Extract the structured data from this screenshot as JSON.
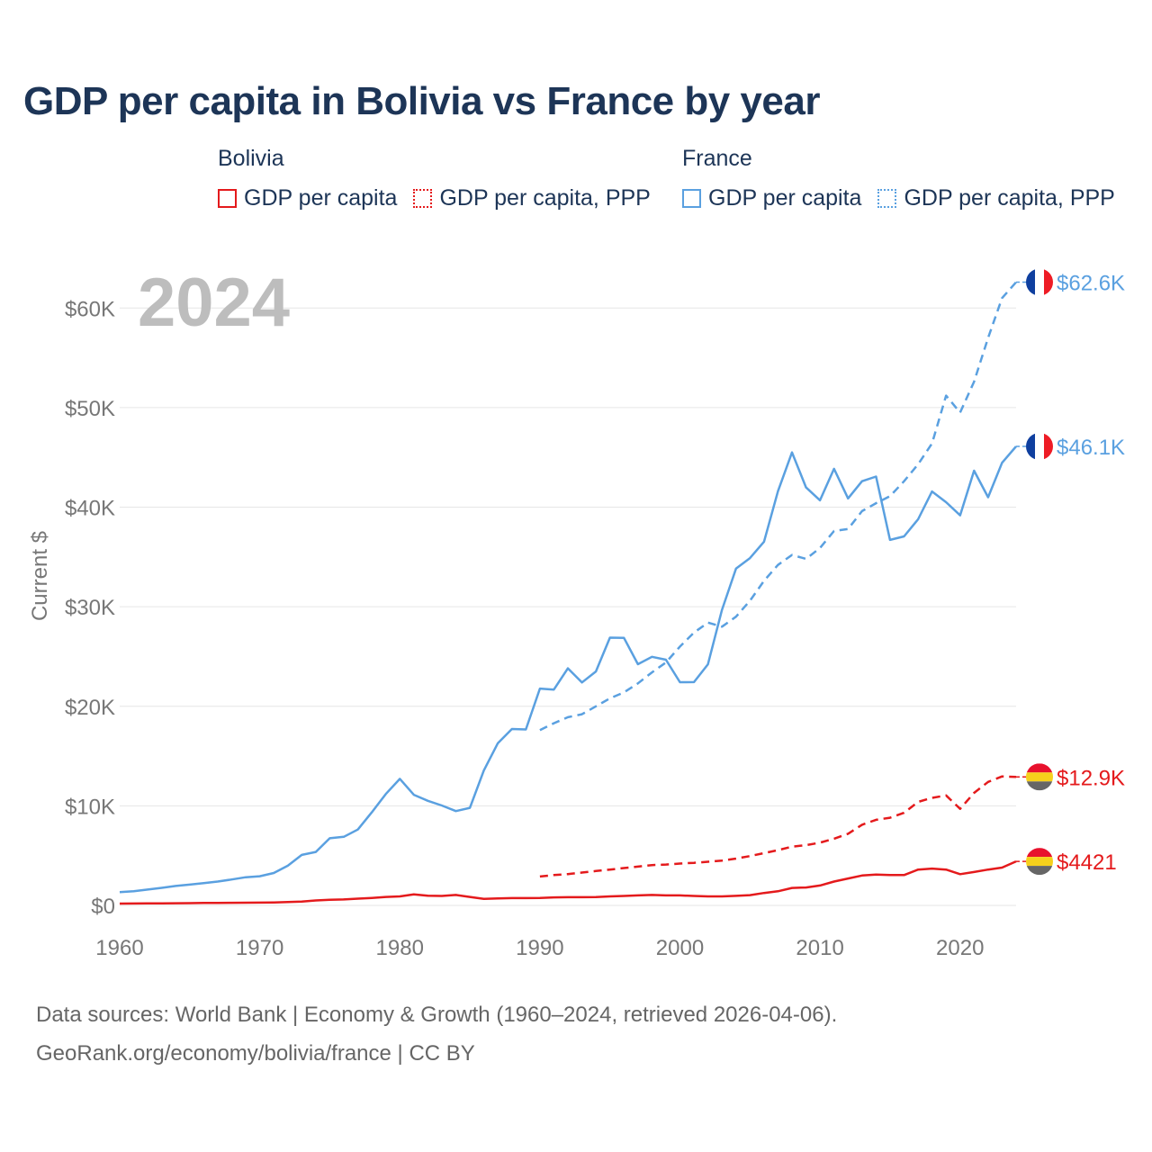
{
  "title": "GDP per capita in Bolivia vs France by year",
  "legend": {
    "groups": [
      {
        "name": "Bolivia",
        "items": [
          {
            "label": "GDP per capita",
            "style": "solid",
            "color": "#e41a1c"
          },
          {
            "label": "GDP per capita, PPP",
            "style": "dotted",
            "color": "#e41a1c"
          }
        ]
      },
      {
        "name": "France",
        "items": [
          {
            "label": "GDP per capita",
            "style": "solid",
            "color": "#5aa0e0"
          },
          {
            "label": "GDP per capita, PPP",
            "style": "dotted",
            "color": "#5aa0e0"
          }
        ]
      }
    ]
  },
  "year_label": "2024",
  "chart_data": {
    "type": "line",
    "title": "GDP per capita in Bolivia vs France by year",
    "xlabel": "",
    "ylabel": "Current $",
    "xlim": [
      1960,
      2024
    ],
    "ylim": [
      0,
      64000
    ],
    "x_ticks": [
      1960,
      1970,
      1980,
      1990,
      2000,
      2010,
      2020
    ],
    "y_ticks": [
      0,
      10000,
      20000,
      30000,
      40000,
      50000,
      60000
    ],
    "y_tick_labels": [
      "$0",
      "$10K",
      "$20K",
      "$30K",
      "$40K",
      "$50K",
      "$60K"
    ],
    "grid": true,
    "series": [
      {
        "name": "France GDP per capita",
        "country": "France",
        "color": "#5aa0e0",
        "dash": "solid",
        "end_label": "$46.1K",
        "x": [
          1960,
          1961,
          1962,
          1963,
          1964,
          1965,
          1966,
          1967,
          1968,
          1969,
          1970,
          1971,
          1972,
          1973,
          1974,
          1975,
          1976,
          1977,
          1978,
          1979,
          1980,
          1981,
          1982,
          1983,
          1984,
          1985,
          1986,
          1987,
          1988,
          1989,
          1990,
          1991,
          1992,
          1993,
          1994,
          1995,
          1996,
          1997,
          1998,
          1999,
          2000,
          2001,
          2002,
          2003,
          2004,
          2005,
          2006,
          2007,
          2008,
          2009,
          2010,
          2011,
          2012,
          2013,
          2014,
          2015,
          2016,
          2017,
          2018,
          2019,
          2020,
          2021,
          2022,
          2023,
          2024
        ],
        "values": [
          1340,
          1420,
          1590,
          1760,
          1950,
          2090,
          2240,
          2400,
          2600,
          2830,
          2930,
          3250,
          3990,
          5070,
          5370,
          6740,
          6890,
          7620,
          9350,
          11190,
          12710,
          11110,
          10500,
          10030,
          9470,
          9800,
          13550,
          16300,
          17720,
          17670,
          21780,
          21680,
          23810,
          22390,
          23490,
          26890,
          26870,
          24230,
          24970,
          24680,
          22420,
          22430,
          24220,
          29690,
          33830,
          34880,
          36530,
          41600,
          45500,
          41980,
          40690,
          43850,
          40880,
          42600,
          43070,
          36710,
          37060,
          38780,
          41570,
          40500,
          39180,
          43660,
          40990,
          44460,
          46100
        ]
      },
      {
        "name": "France GDP per capita, PPP",
        "country": "France",
        "color": "#5aa0e0",
        "dash": "dashed",
        "end_label": "$62.6K",
        "x": [
          1990,
          1991,
          1992,
          1993,
          1994,
          1995,
          1996,
          1997,
          1998,
          1999,
          2000,
          2001,
          2002,
          2003,
          2004,
          2005,
          2006,
          2007,
          2008,
          2009,
          2010,
          2011,
          2012,
          2013,
          2014,
          2015,
          2016,
          2017,
          2018,
          2019,
          2020,
          2021,
          2022,
          2023,
          2024
        ],
        "values": [
          17600,
          18300,
          18900,
          19200,
          20000,
          20800,
          21400,
          22300,
          23400,
          24400,
          26000,
          27400,
          28400,
          28000,
          29000,
          30600,
          32600,
          34200,
          35200,
          34800,
          35900,
          37600,
          37800,
          39600,
          40400,
          41100,
          42600,
          44300,
          46400,
          51200,
          49500,
          52600,
          57000,
          61000,
          62600
        ]
      },
      {
        "name": "Bolivia GDP per capita, PPP",
        "country": "Bolivia",
        "color": "#e41a1c",
        "dash": "dashed",
        "end_label": "$12.9K",
        "x": [
          1990,
          1991,
          1992,
          1993,
          1994,
          1995,
          1996,
          1997,
          1998,
          1999,
          2000,
          2001,
          2002,
          2003,
          2004,
          2005,
          2006,
          2007,
          2008,
          2009,
          2010,
          2011,
          2012,
          2013,
          2014,
          2015,
          2016,
          2017,
          2018,
          2019,
          2020,
          2021,
          2022,
          2023,
          2024
        ],
        "values": [
          2900,
          3050,
          3150,
          3300,
          3450,
          3600,
          3750,
          3900,
          4050,
          4100,
          4200,
          4280,
          4380,
          4500,
          4700,
          4950,
          5250,
          5550,
          5900,
          6050,
          6300,
          6700,
          7200,
          8100,
          8600,
          8800,
          9300,
          10400,
          10800,
          11050,
          9700,
          11300,
          12400,
          12950,
          12900
        ]
      },
      {
        "name": "Bolivia GDP per capita",
        "country": "Bolivia",
        "color": "#e41a1c",
        "dash": "solid",
        "end_label": "$4421",
        "x": [
          1960,
          1961,
          1962,
          1963,
          1964,
          1965,
          1966,
          1967,
          1968,
          1969,
          1970,
          1971,
          1972,
          1973,
          1974,
          1975,
          1976,
          1977,
          1978,
          1979,
          1980,
          1981,
          1982,
          1983,
          1984,
          1985,
          1986,
          1987,
          1988,
          1989,
          1990,
          1991,
          1992,
          1993,
          1994,
          1995,
          1996,
          1997,
          1998,
          1999,
          2000,
          2001,
          2002,
          2003,
          2004,
          2005,
          2006,
          2007,
          2008,
          2009,
          2010,
          2011,
          2012,
          2013,
          2014,
          2015,
          2016,
          2017,
          2018,
          2019,
          2020,
          2021,
          2022,
          2023,
          2024
        ],
        "values": [
          180,
          190,
          200,
          210,
          220,
          230,
          240,
          250,
          260,
          270,
          280,
          300,
          330,
          380,
          500,
          560,
          600,
          680,
          750,
          850,
          900,
          1100,
          980,
          950,
          1050,
          850,
          650,
          700,
          730,
          730,
          750,
          800,
          820,
          820,
          830,
          900,
          950,
          1000,
          1050,
          1000,
          1000,
          950,
          900,
          900,
          960,
          1030,
          1250,
          1420,
          1750,
          1800,
          2000,
          2400,
          2700,
          3000,
          3100,
          3050,
          3050,
          3600,
          3700,
          3600,
          3140,
          3350,
          3600,
          3800,
          4421
        ]
      }
    ]
  },
  "sources": {
    "line1": "Data sources: World Bank | Economy & Growth (1960–2024, retrieved 2026-04-06).",
    "line2": "GeoRank.org/economy/bolivia/france | CC BY"
  }
}
